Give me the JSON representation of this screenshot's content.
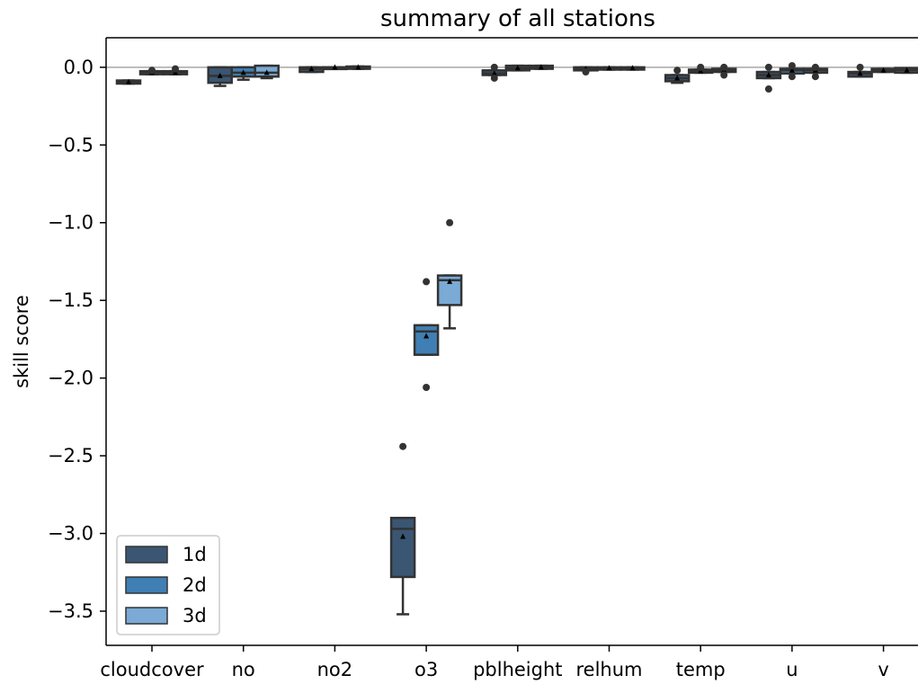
{
  "chart_data": {
    "type": "boxplot",
    "title": "summary of all stations",
    "xlabel": "",
    "ylabel": "skill score",
    "ylim": [
      -3.72,
      0.19
    ],
    "yticks": [
      0.0,
      -0.5,
      -1.0,
      -1.5,
      -2.0,
      -2.5,
      -3.0,
      -3.5
    ],
    "ytick_labels": [
      "0.0",
      "−0.5",
      "−1.0",
      "−1.5",
      "−2.0",
      "−2.5",
      "−3.0",
      "−3.5"
    ],
    "categories": [
      "cloudcover",
      "no",
      "no2",
      "o3",
      "pblheight",
      "relhum",
      "temp",
      "u",
      "v"
    ],
    "reference_line": 0.0,
    "legend_position": "lower left",
    "series": [
      {
        "name": "1d",
        "color": "#3a5673",
        "boxes": [
          {
            "q1": -0.105,
            "median": -0.095,
            "q3": -0.085,
            "whisker_low": -0.105,
            "whisker_high": -0.085,
            "mean": -0.095,
            "outliers": []
          },
          {
            "q1": -0.1,
            "median": -0.055,
            "q3": 0.0,
            "whisker_low": -0.12,
            "whisker_high": 0.0,
            "mean": -0.055,
            "outliers": []
          },
          {
            "q1": -0.03,
            "median": -0.01,
            "q3": 0.0,
            "whisker_low": -0.03,
            "whisker_high": 0.0,
            "mean": -0.01,
            "outliers": []
          },
          {
            "q1": -3.28,
            "median": -2.97,
            "q3": -2.9,
            "whisker_low": -3.52,
            "whisker_high": -2.9,
            "mean": -3.02,
            "outliers": [
              -2.44
            ]
          },
          {
            "q1": -0.05,
            "median": -0.04,
            "q3": -0.02,
            "whisker_low": -0.05,
            "whisker_high": -0.02,
            "mean": -0.04,
            "outliers": [
              0.0,
              -0.07
            ]
          },
          {
            "q1": -0.02,
            "median": -0.01,
            "q3": 0.0,
            "whisker_low": -0.02,
            "whisker_high": 0.0,
            "mean": -0.01,
            "outliers": [
              -0.03
            ]
          },
          {
            "q1": -0.09,
            "median": -0.07,
            "q3": -0.05,
            "whisker_low": -0.1,
            "whisker_high": -0.05,
            "mean": -0.07,
            "outliers": [
              -0.02
            ]
          },
          {
            "q1": -0.07,
            "median": -0.05,
            "q3": -0.03,
            "whisker_low": -0.07,
            "whisker_high": -0.03,
            "mean": -0.05,
            "outliers": [
              0.0,
              -0.14
            ]
          },
          {
            "q1": -0.06,
            "median": -0.04,
            "q3": -0.03,
            "whisker_low": -0.06,
            "whisker_high": -0.03,
            "mean": -0.04,
            "outliers": [
              0.0
            ]
          }
        ]
      },
      {
        "name": "2d",
        "color": "#3f7fb3",
        "boxes": [
          {
            "q1": -0.045,
            "median": -0.035,
            "q3": -0.025,
            "whisker_low": -0.045,
            "whisker_high": -0.025,
            "mean": -0.035,
            "outliers": [
              -0.02
            ]
          },
          {
            "q1": -0.06,
            "median": -0.035,
            "q3": 0.0,
            "whisker_low": -0.08,
            "whisker_high": 0.0,
            "mean": -0.035,
            "outliers": []
          },
          {
            "q1": -0.01,
            "median": 0.0,
            "q3": 0.0,
            "whisker_low": -0.01,
            "whisker_high": 0.0,
            "mean": 0.0,
            "outliers": []
          },
          {
            "q1": -1.85,
            "median": -1.7,
            "q3": -1.66,
            "whisker_low": -1.85,
            "whisker_high": -1.66,
            "mean": -1.73,
            "outliers": [
              -1.38,
              -2.06
            ]
          },
          {
            "q1": -0.02,
            "median": -0.005,
            "q3": 0.01,
            "whisker_low": -0.02,
            "whisker_high": 0.01,
            "mean": -0.005,
            "outliers": []
          },
          {
            "q1": -0.015,
            "median": -0.005,
            "q3": 0.0,
            "whisker_low": -0.015,
            "whisker_high": 0.0,
            "mean": -0.005,
            "outliers": []
          },
          {
            "q1": -0.035,
            "median": -0.025,
            "q3": -0.015,
            "whisker_low": -0.035,
            "whisker_high": -0.015,
            "mean": -0.025,
            "outliers": [
              0.0
            ]
          },
          {
            "q1": -0.04,
            "median": -0.02,
            "q3": -0.01,
            "whisker_low": -0.04,
            "whisker_high": -0.01,
            "mean": -0.02,
            "outliers": [
              0.01,
              -0.06
            ]
          },
          {
            "q1": -0.03,
            "median": -0.02,
            "q3": -0.01,
            "whisker_low": -0.03,
            "whisker_high": -0.01,
            "mean": -0.02,
            "outliers": []
          }
        ]
      },
      {
        "name": "3d",
        "color": "#7aaad5",
        "boxes": [
          {
            "q1": -0.045,
            "median": -0.035,
            "q3": -0.025,
            "whisker_low": -0.045,
            "whisker_high": -0.025,
            "mean": -0.035,
            "outliers": [
              -0.01
            ]
          },
          {
            "q1": -0.06,
            "median": -0.035,
            "q3": 0.01,
            "whisker_low": -0.07,
            "whisker_high": 0.01,
            "mean": -0.035,
            "outliers": []
          },
          {
            "q1": -0.01,
            "median": 0.0,
            "q3": 0.005,
            "whisker_low": -0.01,
            "whisker_high": 0.005,
            "mean": 0.0,
            "outliers": []
          },
          {
            "q1": -1.53,
            "median": -1.37,
            "q3": -1.34,
            "whisker_low": -1.68,
            "whisker_high": -1.34,
            "mean": -1.38,
            "outliers": [
              -1.0
            ]
          },
          {
            "q1": -0.01,
            "median": 0.0,
            "q3": 0.01,
            "whisker_low": -0.01,
            "whisker_high": 0.01,
            "mean": 0.0,
            "outliers": []
          },
          {
            "q1": -0.015,
            "median": -0.005,
            "q3": 0.0,
            "whisker_low": -0.015,
            "whisker_high": 0.0,
            "mean": -0.005,
            "outliers": []
          },
          {
            "q1": -0.03,
            "median": -0.02,
            "q3": -0.01,
            "whisker_low": -0.03,
            "whisker_high": -0.01,
            "mean": -0.02,
            "outliers": [
              0.0,
              -0.05
            ]
          },
          {
            "q1": -0.035,
            "median": -0.02,
            "q3": -0.01,
            "whisker_low": -0.035,
            "whisker_high": -0.01,
            "mean": -0.02,
            "outliers": [
              0.0,
              -0.06
            ]
          },
          {
            "q1": -0.035,
            "median": -0.02,
            "q3": -0.005,
            "whisker_low": -0.035,
            "whisker_high": -0.005,
            "mean": -0.02,
            "outliers": []
          }
        ]
      }
    ]
  }
}
